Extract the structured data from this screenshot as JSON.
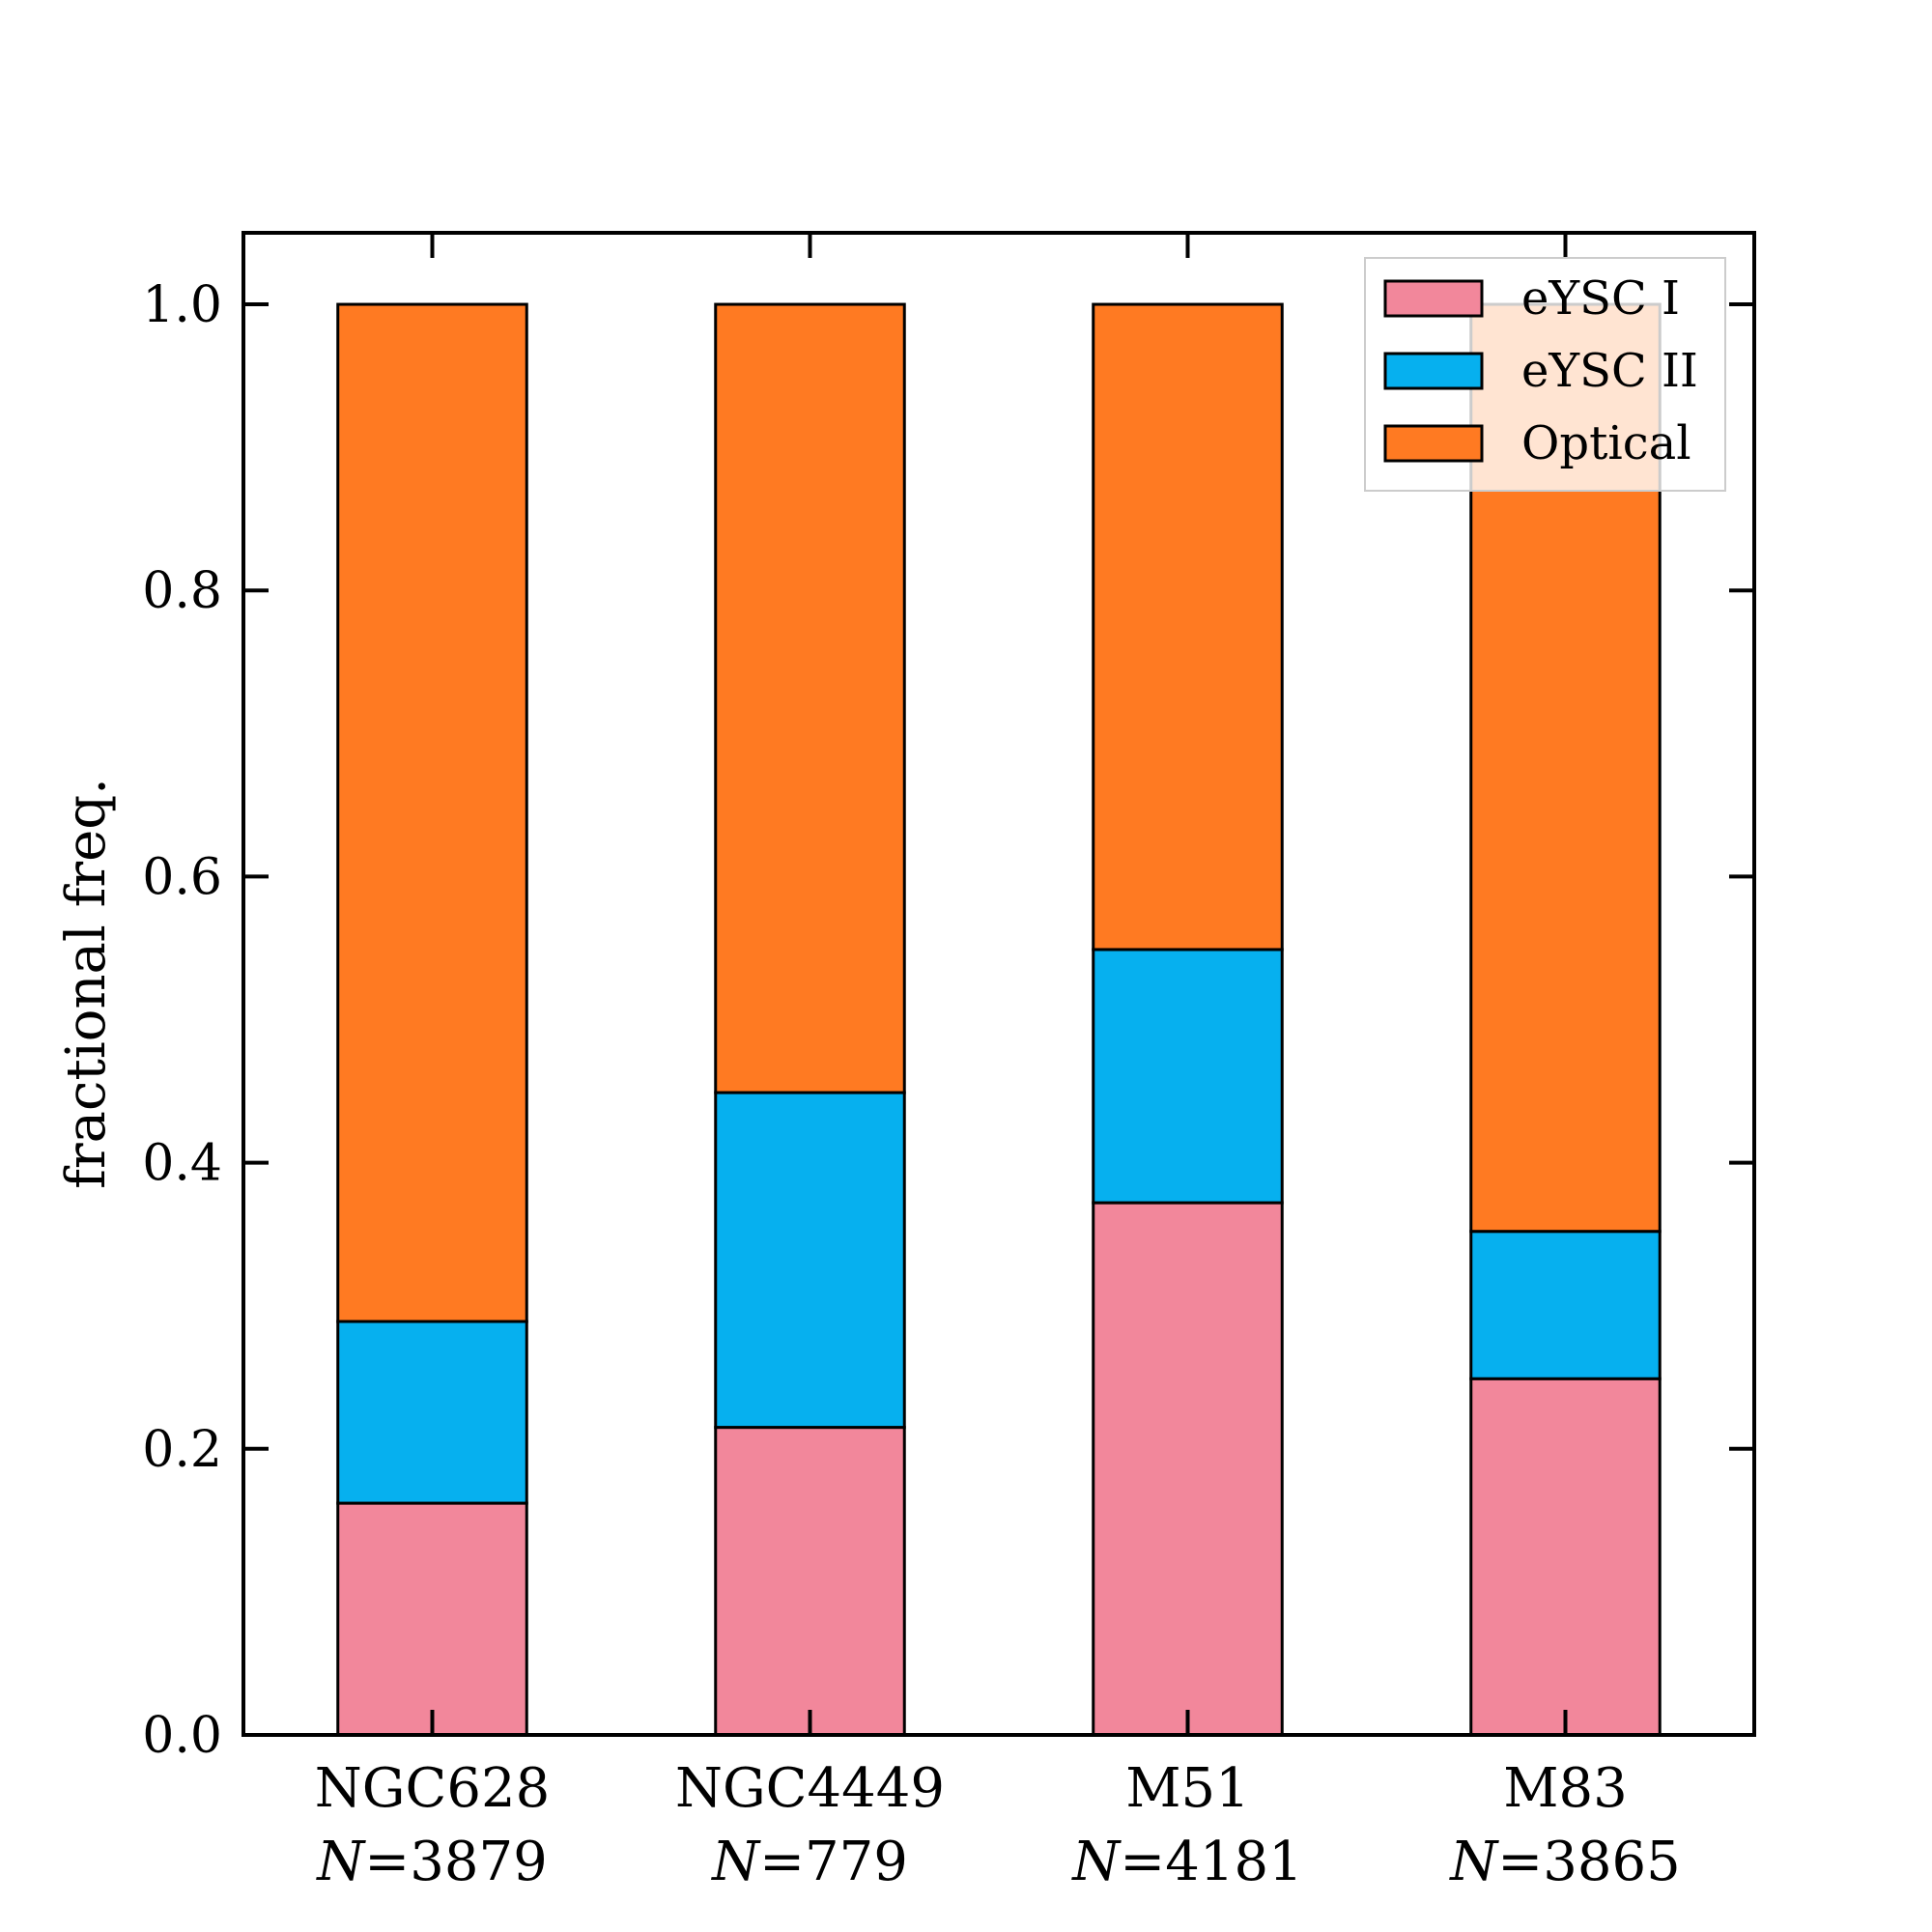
{
  "chart_data": {
    "type": "bar",
    "stacked": true,
    "categories": [
      "NGC628",
      "NGC4449",
      "M51",
      "M83"
    ],
    "category_counts": [
      "N = 3879",
      "N = 779",
      "N = 4181",
      "N = 3865"
    ],
    "series": [
      {
        "name": "eYSC I",
        "values": [
          0.162,
          0.215,
          0.372,
          0.249
        ]
      },
      {
        "name": "eYSC II",
        "values": [
          0.127,
          0.234,
          0.177,
          0.103
        ]
      },
      {
        "name": "Optical",
        "values": [
          0.711,
          0.551,
          0.451,
          0.648
        ]
      }
    ],
    "title": "",
    "xlabel": "",
    "ylabel": "fractional freq.",
    "ylim": [
      0.0,
      1.05
    ],
    "yticks": [
      "0.0",
      "0.2",
      "0.4",
      "0.6",
      "0.8",
      "1.0"
    ],
    "grid": false,
    "legend_position": "top-right",
    "colors": {
      "eYSC I": "#f2879b",
      "eYSC II": "#06b0ef",
      "Optical": "#ff7a22"
    }
  }
}
